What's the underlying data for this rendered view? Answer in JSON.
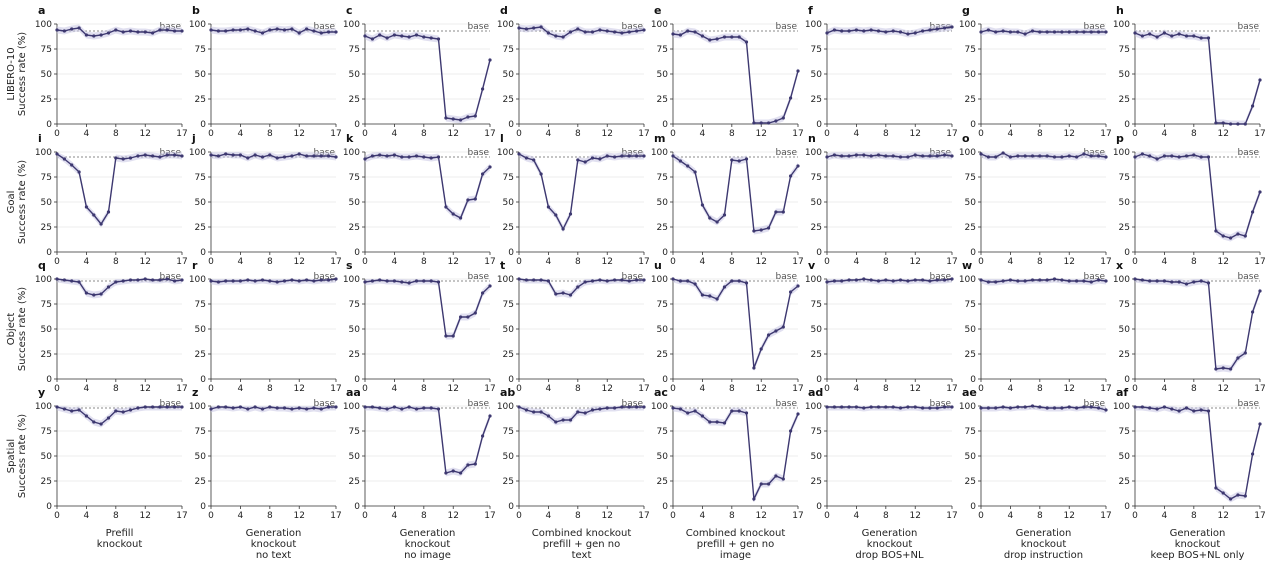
{
  "figure": {
    "base_label": "base",
    "row_ylabels": [
      [
        "LIBERO-10",
        "Success rate (%)"
      ],
      [
        "Goal",
        "Success rate (%)"
      ],
      [
        "Object",
        "Success rate (%)"
      ],
      [
        "Spatial",
        "Success rate (%)"
      ]
    ],
    "col_labels": [
      [
        "Prefill",
        "knockout"
      ],
      [
        "Generation",
        "knockout",
        "no text"
      ],
      [
        "Generation",
        "knockout",
        "no image"
      ],
      [
        "Combined knockout",
        "prefill + gen no",
        "text"
      ],
      [
        "Combined knockout",
        "prefill + gen no",
        "image"
      ],
      [
        "Generation",
        "knockout",
        "drop BOS+NL"
      ],
      [
        "Generation",
        "knockout",
        "drop instruction"
      ],
      [
        "Generation",
        "knockout",
        "keep BOS+NL only"
      ]
    ],
    "panel_letters": [
      "a",
      "b",
      "c",
      "d",
      "e",
      "f",
      "g",
      "h",
      "i",
      "j",
      "k",
      "l",
      "m",
      "n",
      "o",
      "p",
      "q",
      "r",
      "s",
      "t",
      "u",
      "v",
      "w",
      "x",
      "y",
      "z",
      "aa",
      "ab",
      "ac",
      "ad",
      "ae",
      "af"
    ],
    "colors": {
      "line": "#3d3870",
      "band": "#c9c6e3",
      "base": "#8a8a8a",
      "grid": "#e6e6e6",
      "axis": "#333333"
    }
  },
  "chart_data": {
    "type": "line",
    "x": [
      0,
      1,
      2,
      3,
      4,
      5,
      6,
      7,
      8,
      9,
      10,
      11,
      12,
      13,
      14,
      15,
      16,
      17
    ],
    "xticks": [
      0,
      4,
      8,
      12,
      17
    ],
    "yticks": [
      0,
      25,
      50,
      75,
      100
    ],
    "ylim": [
      0,
      100
    ],
    "xlim": [
      0,
      17
    ],
    "base": [
      93,
      93,
      93,
      93,
      93,
      93,
      93,
      93,
      95,
      95,
      95,
      95,
      95,
      95,
      95,
      95,
      98,
      98,
      98,
      98,
      98,
      98,
      98,
      98,
      98,
      98,
      98,
      98,
      98,
      98,
      98,
      98
    ],
    "panels": [
      [
        94,
        93,
        95,
        96,
        89,
        88,
        89,
        91,
        94,
        92,
        93,
        92,
        92,
        91,
        94,
        94,
        93,
        93
      ],
      [
        94,
        93,
        93,
        94,
        94,
        95,
        93,
        91,
        94,
        95,
        94,
        95,
        91,
        95,
        93,
        91,
        92,
        92
      ],
      [
        88,
        85,
        89,
        86,
        89,
        88,
        87,
        89,
        87,
        86,
        85,
        6,
        5,
        4,
        7,
        8,
        35,
        64
      ],
      [
        96,
        95,
        96,
        97,
        91,
        88,
        87,
        92,
        95,
        92,
        92,
        94,
        93,
        92,
        91,
        92,
        93,
        94
      ],
      [
        90,
        89,
        93,
        92,
        88,
        84,
        85,
        87,
        87,
        87,
        82,
        1,
        1,
        1,
        3,
        6,
        26,
        53
      ],
      [
        91,
        94,
        93,
        93,
        94,
        93,
        94,
        93,
        92,
        93,
        92,
        90,
        91,
        93,
        94,
        95,
        96,
        97
      ],
      [
        92,
        94,
        92,
        93,
        92,
        92,
        90,
        93,
        92,
        92,
        92,
        92,
        92,
        92,
        92,
        92,
        92,
        92
      ],
      [
        91,
        88,
        90,
        87,
        91,
        88,
        90,
        88,
        88,
        86,
        86,
        1,
        1,
        0,
        0,
        0,
        18,
        44
      ],
      [
        98,
        93,
        87,
        80,
        45,
        37,
        28,
        40,
        94,
        93,
        94,
        96,
        97,
        96,
        95,
        97,
        97,
        96
      ],
      [
        97,
        96,
        98,
        97,
        97,
        94,
        97,
        95,
        97,
        94,
        95,
        96,
        98,
        96,
        96,
        96,
        96,
        95
      ],
      [
        93,
        96,
        97,
        96,
        97,
        95,
        95,
        96,
        95,
        94,
        95,
        45,
        38,
        34,
        52,
        53,
        78,
        85
      ],
      [
        98,
        94,
        92,
        78,
        45,
        37,
        23,
        38,
        92,
        90,
        94,
        93,
        96,
        95,
        96,
        96,
        96,
        96
      ],
      [
        96,
        91,
        86,
        80,
        47,
        34,
        30,
        37,
        92,
        91,
        93,
        21,
        22,
        24,
        40,
        40,
        76,
        86
      ],
      [
        95,
        97,
        96,
        96,
        97,
        97,
        96,
        97,
        96,
        96,
        95,
        95,
        97,
        96,
        96,
        96,
        97,
        96
      ],
      [
        98,
        95,
        95,
        99,
        95,
        96,
        96,
        96,
        96,
        96,
        95,
        95,
        96,
        95,
        98,
        96,
        96,
        95
      ],
      [
        95,
        98,
        96,
        93,
        96,
        96,
        95,
        96,
        97,
        95,
        95,
        21,
        16,
        14,
        18,
        16,
        40,
        60
      ],
      [
        100,
        99,
        98,
        97,
        86,
        84,
        85,
        92,
        97,
        98,
        99,
        99,
        100,
        99,
        99,
        100,
        98,
        99
      ],
      [
        98,
        97,
        98,
        98,
        98,
        99,
        98,
        99,
        98,
        97,
        98,
        99,
        98,
        99,
        98,
        99,
        99,
        100
      ],
      [
        97,
        98,
        99,
        98,
        98,
        97,
        96,
        98,
        98,
        98,
        97,
        43,
        43,
        62,
        62,
        66,
        86,
        93
      ],
      [
        100,
        99,
        99,
        99,
        98,
        85,
        86,
        84,
        92,
        97,
        98,
        99,
        98,
        99,
        99,
        98,
        99,
        99
      ],
      [
        100,
        98,
        98,
        95,
        84,
        83,
        80,
        92,
        98,
        98,
        96,
        11,
        30,
        44,
        48,
        52,
        87,
        93
      ],
      [
        97,
        98,
        98,
        99,
        99,
        100,
        99,
        98,
        99,
        98,
        99,
        98,
        99,
        99,
        98,
        99,
        99,
        100
      ],
      [
        99,
        97,
        97,
        98,
        99,
        98,
        98,
        99,
        99,
        99,
        100,
        99,
        98,
        98,
        98,
        97,
        99,
        98
      ],
      [
        100,
        99,
        98,
        98,
        98,
        97,
        97,
        95,
        97,
        98,
        96,
        10,
        11,
        10,
        21,
        26,
        67,
        88
      ],
      [
        99,
        97,
        95,
        96,
        90,
        84,
        82,
        88,
        95,
        94,
        96,
        98,
        99,
        99,
        99,
        99,
        99,
        99
      ],
      [
        97,
        99,
        99,
        98,
        99,
        97,
        99,
        97,
        99,
        98,
        98,
        97,
        98,
        97,
        98,
        97,
        99,
        99
      ],
      [
        99,
        99,
        98,
        97,
        99,
        97,
        99,
        97,
        98,
        98,
        97,
        33,
        35,
        33,
        41,
        42,
        70,
        90
      ],
      [
        99,
        96,
        94,
        94,
        90,
        84,
        86,
        86,
        94,
        93,
        96,
        97,
        98,
        98,
        99,
        99,
        99,
        99
      ],
      [
        98,
        97,
        93,
        95,
        90,
        84,
        84,
        83,
        95,
        95,
        93,
        7,
        22,
        22,
        30,
        27,
        75,
        92
      ],
      [
        99,
        99,
        99,
        99,
        99,
        98,
        99,
        99,
        99,
        99,
        98,
        99,
        99,
        98,
        98,
        98,
        99,
        99
      ],
      [
        98,
        98,
        98,
        99,
        98,
        99,
        99,
        100,
        99,
        98,
        98,
        98,
        99,
        98,
        99,
        99,
        98,
        96
      ],
      [
        99,
        99,
        98,
        97,
        99,
        97,
        95,
        98,
        95,
        96,
        95,
        18,
        13,
        7,
        11,
        10,
        52,
        82
      ]
    ]
  }
}
